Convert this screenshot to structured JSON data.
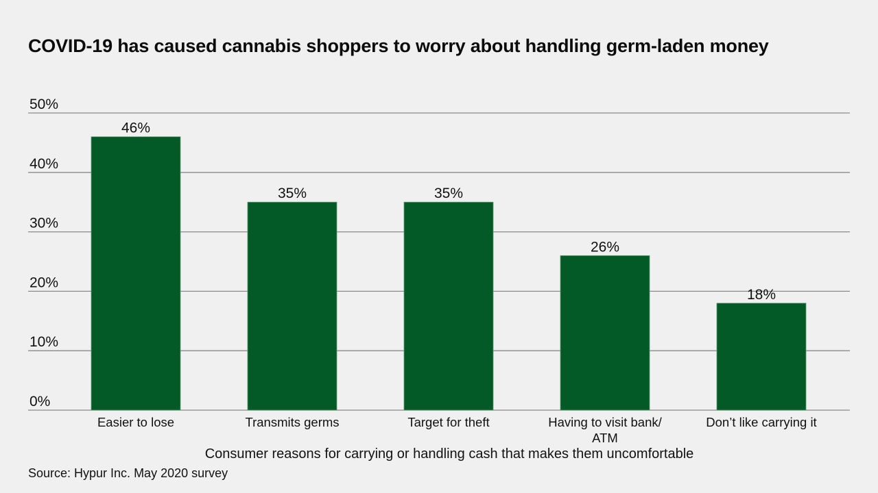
{
  "chart_data": {
    "type": "bar",
    "title": "COVID-19 has caused cannabis shoppers to worry about handling germ-laden money",
    "xlabel": "Consumer reasons for carrying or handling cash that makes them uncomfortable",
    "ylabel": "",
    "source": "Source: Hypur Inc. May 2020 survey",
    "categories": [
      [
        "Easier to lose"
      ],
      [
        "Transmits germs"
      ],
      [
        "Target for theft"
      ],
      [
        "Having to visit bank/",
        "ATM"
      ],
      [
        "Don’t like carrying it"
      ]
    ],
    "values": [
      46,
      35,
      35,
      26,
      18
    ],
    "data_labels": [
      "46%",
      "35%",
      "35%",
      "26%",
      "18%"
    ],
    "ylim": [
      0,
      50
    ],
    "yticks": [
      0,
      10,
      20,
      30,
      40,
      50
    ],
    "ytick_labels": [
      "0%",
      "10%",
      "20%",
      "30%",
      "40%",
      "50%"
    ],
    "grid": true,
    "legend": "none",
    "colors": {
      "bar": "#045a27",
      "bar_edge": "#5c9b72",
      "grid": "#8a8a8a",
      "background": "#eff0ef"
    }
  }
}
